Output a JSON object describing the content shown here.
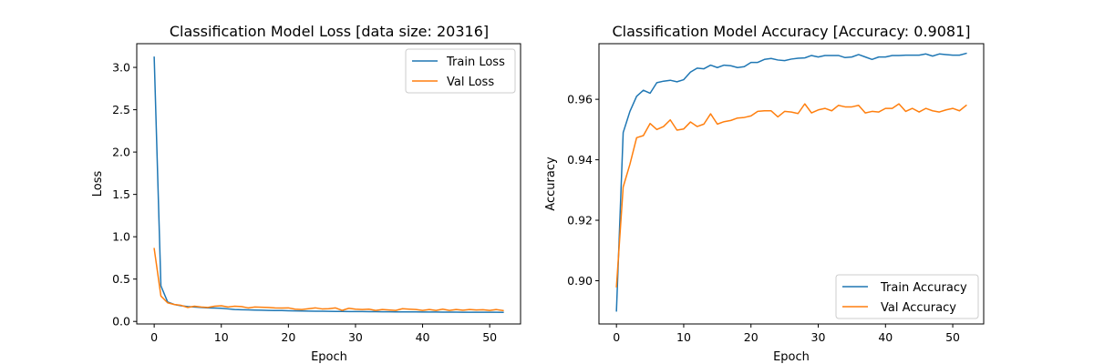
{
  "chart_data": [
    {
      "type": "line",
      "title": "Classification Model Loss [data size: 20316]",
      "xlabel": "Epoch",
      "ylabel": "Loss",
      "xlim": [
        -2.6,
        54.6
      ],
      "ylim": [
        -0.03,
        3.28
      ],
      "xticks": [
        0,
        10,
        20,
        30,
        40,
        50
      ],
      "yticks": [
        0.0,
        0.5,
        1.0,
        1.5,
        2.0,
        2.5,
        3.0
      ],
      "ytick_decimals": 1,
      "legend": "top-right",
      "grid": false,
      "series": [
        {
          "name": "Train Loss",
          "color": "#1f77b4",
          "values": [
            3.12,
            0.42,
            0.23,
            0.2,
            0.185,
            0.175,
            0.17,
            0.165,
            0.16,
            0.158,
            0.155,
            0.148,
            0.14,
            0.138,
            0.136,
            0.134,
            0.132,
            0.13,
            0.129,
            0.128,
            0.126,
            0.124,
            0.123,
            0.122,
            0.121,
            0.12,
            0.119,
            0.118,
            0.118,
            0.117,
            0.116,
            0.116,
            0.115,
            0.115,
            0.114,
            0.114,
            0.113,
            0.113,
            0.112,
            0.112,
            0.111,
            0.111,
            0.111,
            0.11,
            0.11,
            0.11,
            0.109,
            0.109,
            0.109,
            0.108,
            0.108,
            0.108,
            0.107
          ]
        },
        {
          "name": "Val Loss",
          "color": "#ff7f0e",
          "values": [
            0.86,
            0.3,
            0.22,
            0.2,
            0.19,
            0.165,
            0.18,
            0.17,
            0.165,
            0.18,
            0.185,
            0.17,
            0.18,
            0.175,
            0.16,
            0.17,
            0.168,
            0.165,
            0.16,
            0.158,
            0.16,
            0.145,
            0.14,
            0.15,
            0.16,
            0.148,
            0.15,
            0.16,
            0.13,
            0.155,
            0.145,
            0.14,
            0.145,
            0.13,
            0.14,
            0.135,
            0.13,
            0.15,
            0.145,
            0.14,
            0.13,
            0.14,
            0.13,
            0.145,
            0.13,
            0.14,
            0.132,
            0.14,
            0.135,
            0.138,
            0.13,
            0.14,
            0.128
          ]
        }
      ]
    },
    {
      "type": "line",
      "title": "Classification Model Accuracy [Accuracy: 0.9081]",
      "xlabel": "Epoch",
      "ylabel": "Accuracy",
      "xlim": [
        -2.6,
        54.6
      ],
      "ylim": [
        0.8857,
        0.9784
      ],
      "xticks": [
        0,
        10,
        20,
        30,
        40,
        50
      ],
      "yticks": [
        0.9,
        0.92,
        0.94,
        0.96
      ],
      "ytick_decimals": 2,
      "legend": "bottom-right",
      "grid": false,
      "series": [
        {
          "name": "Train Accuracy",
          "color": "#1f77b4",
          "values": [
            0.89,
            0.949,
            0.956,
            0.961,
            0.963,
            0.962,
            0.9655,
            0.966,
            0.9663,
            0.9658,
            0.9665,
            0.969,
            0.9703,
            0.9701,
            0.9713,
            0.9705,
            0.9713,
            0.9711,
            0.9705,
            0.9708,
            0.9722,
            0.9722,
            0.9732,
            0.9735,
            0.973,
            0.9728,
            0.9733,
            0.9736,
            0.9737,
            0.9745,
            0.974,
            0.9745,
            0.9745,
            0.9745,
            0.9738,
            0.974,
            0.9748,
            0.974,
            0.9732,
            0.974,
            0.974,
            0.9745,
            0.9745,
            0.9746,
            0.9746,
            0.9746,
            0.975,
            0.9743,
            0.975,
            0.9748,
            0.9746,
            0.9746,
            0.9752
          ]
        },
        {
          "name": "Val Accuracy",
          "color": "#ff7f0e",
          "values": [
            0.898,
            0.931,
            0.9385,
            0.9473,
            0.948,
            0.952,
            0.95,
            0.951,
            0.9532,
            0.9498,
            0.9502,
            0.9525,
            0.951,
            0.9518,
            0.9552,
            0.9518,
            0.9526,
            0.953,
            0.9538,
            0.954,
            0.9545,
            0.956,
            0.9562,
            0.9562,
            0.9542,
            0.956,
            0.9558,
            0.9553,
            0.9585,
            0.9555,
            0.9565,
            0.957,
            0.9562,
            0.958,
            0.9575,
            0.9575,
            0.958,
            0.9555,
            0.956,
            0.9558,
            0.957,
            0.957,
            0.9585,
            0.956,
            0.957,
            0.9558,
            0.957,
            0.9562,
            0.9558,
            0.9565,
            0.957,
            0.9562,
            0.958
          ]
        }
      ]
    }
  ]
}
